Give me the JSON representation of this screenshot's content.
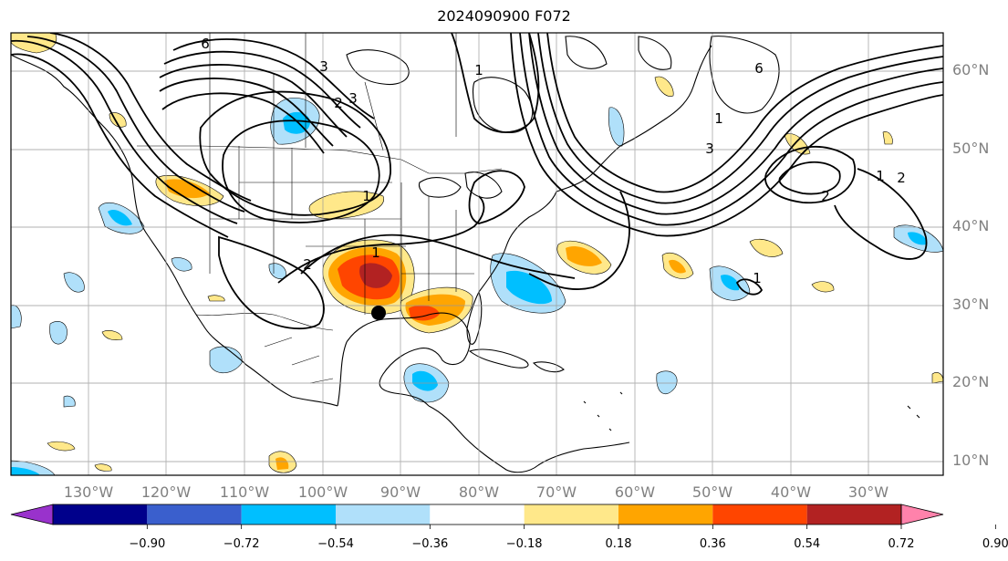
{
  "title": "2024090900 F072",
  "map": {
    "lat_labels": [
      "60°N",
      "50°N",
      "40°N",
      "30°N",
      "20°N",
      "10°N"
    ],
    "lon_labels": [
      "130°W",
      "120°W",
      "110°W",
      "100°W",
      "90°W",
      "80°W",
      "70°W",
      "60°W",
      "50°W",
      "40°W",
      "30°W"
    ],
    "contour_labels": [
      "6",
      "3",
      "2",
      "3",
      "1",
      "1",
      "2",
      "1",
      "1",
      "2",
      "3",
      "6",
      "2",
      "1",
      "1"
    ],
    "marker": "storm-position-dot"
  },
  "colorbar": {
    "ticks": [
      "−0.90",
      "−0.72",
      "−0.54",
      "−0.36",
      "−0.18",
      "0.18",
      "0.36",
      "0.54",
      "0.72",
      "0.90"
    ],
    "colors": [
      "#9932cc",
      "#00008b",
      "#3a5fcd",
      "#00bfff",
      "#b0e0fa",
      "#ffffff",
      "#ffe88a",
      "#ffa500",
      "#ff4500",
      "#b22222",
      "#ff82ab"
    ]
  }
}
